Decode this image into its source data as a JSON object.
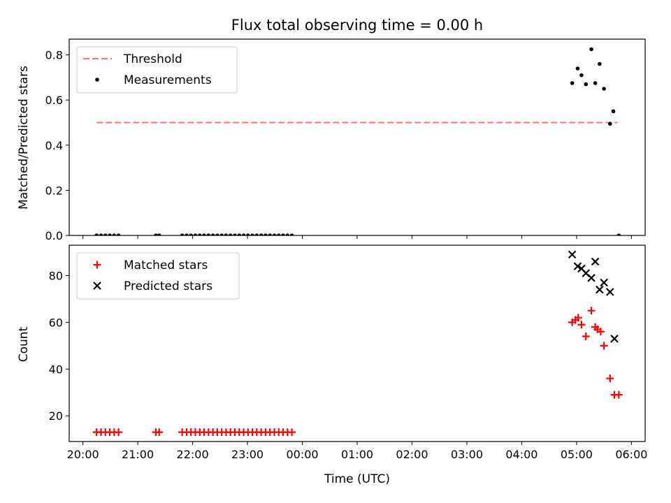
{
  "chart_data": [
    {
      "type": "scatter",
      "title": "Flux total observing time = 0.00 h",
      "xlabel": "",
      "ylabel": "Matched/Predicted stars",
      "xlim": [
        -0.25,
        10.25
      ],
      "ylim": [
        0,
        0.87
      ],
      "x_ticks": [
        0,
        1,
        2,
        3,
        4,
        5,
        6,
        7,
        8,
        9,
        10
      ],
      "yticks": [
        0.0,
        0.2,
        0.4,
        0.6,
        0.8
      ],
      "ytick_labels": [
        "0.0",
        "0.2",
        "0.4",
        "0.6",
        "0.8"
      ],
      "legend": {
        "placement": "top-left",
        "entries": [
          "Threshold",
          "Measurements"
        ]
      },
      "threshold": {
        "name": "Threshold",
        "y": 0.5,
        "x_range": [
          0.25,
          9.75
        ],
        "color": "#ff7070",
        "style": "dashed"
      },
      "series": [
        {
          "name": "Measurements",
          "color": "#000000",
          "marker": "dot",
          "x": [
            0.25,
            0.33,
            0.41,
            0.49,
            0.57,
            0.65,
            1.33,
            1.39,
            1.81,
            1.89,
            1.97,
            2.05,
            2.13,
            2.21,
            2.29,
            2.37,
            2.45,
            2.53,
            2.61,
            2.69,
            2.77,
            2.85,
            2.93,
            3.01,
            3.09,
            3.17,
            3.25,
            3.33,
            3.41,
            3.49,
            3.57,
            3.65,
            3.73,
            3.81,
            8.92,
            9.02,
            9.09,
            9.17,
            9.27,
            9.34,
            9.42,
            9.5,
            9.61,
            9.67,
            9.77
          ],
          "y": [
            0,
            0,
            0,
            0,
            0,
            0,
            0,
            0,
            0,
            0,
            0,
            0,
            0,
            0,
            0,
            0,
            0,
            0,
            0,
            0,
            0,
            0,
            0,
            0,
            0,
            0,
            0,
            0,
            0,
            0,
            0,
            0,
            0,
            0,
            0.675,
            0.74,
            0.71,
            0.67,
            0.825,
            0.675,
            0.76,
            0.65,
            0.495,
            0.55,
            0.0
          ]
        }
      ]
    },
    {
      "type": "scatter",
      "title": "",
      "xlabel": "Time (UTC)",
      "ylabel": "Count",
      "xlim": [
        -0.25,
        10.25
      ],
      "ylim": [
        9,
        93
      ],
      "x_ticks": [
        0,
        1,
        2,
        3,
        4,
        5,
        6,
        7,
        8,
        9,
        10
      ],
      "xtick_labels": [
        "20:00",
        "21:00",
        "22:00",
        "23:00",
        "00:00",
        "01:00",
        "02:00",
        "03:00",
        "04:00",
        "05:00",
        "06:00"
      ],
      "yticks": [
        20,
        40,
        60,
        80
      ],
      "ytick_labels": [
        "20",
        "40",
        "60",
        "80"
      ],
      "legend": {
        "placement": "top-left",
        "entries": [
          "Matched stars",
          "Predicted stars"
        ]
      },
      "series": [
        {
          "name": "Matched stars",
          "color": "#ff0000",
          "marker": "plus",
          "x": [
            0.25,
            0.33,
            0.41,
            0.49,
            0.57,
            0.65,
            1.33,
            1.39,
            1.81,
            1.89,
            1.97,
            2.05,
            2.13,
            2.21,
            2.29,
            2.37,
            2.45,
            2.53,
            2.61,
            2.69,
            2.77,
            2.85,
            2.93,
            3.01,
            3.09,
            3.17,
            3.25,
            3.33,
            3.41,
            3.49,
            3.57,
            3.65,
            3.73,
            3.81,
            8.92,
            8.98,
            9.03,
            9.09,
            9.17,
            9.27,
            9.34,
            9.38,
            9.44,
            9.5,
            9.61,
            9.69,
            9.77
          ],
          "y": [
            13,
            13,
            13,
            13,
            13,
            13,
            13,
            13,
            13,
            13,
            13,
            13,
            13,
            13,
            13,
            13,
            13,
            13,
            13,
            13,
            13,
            13,
            13,
            13,
            13,
            13,
            13,
            13,
            13,
            13,
            13,
            13,
            13,
            13,
            60,
            61,
            62,
            59,
            54,
            65,
            58,
            57,
            56,
            50,
            36,
            29,
            29
          ]
        },
        {
          "name": "Predicted stars",
          "color": "#000000",
          "marker": "x",
          "x": [
            8.92,
            9.02,
            9.09,
            9.17,
            9.27,
            9.34,
            9.42,
            9.5,
            9.61,
            9.69
          ],
          "y": [
            89,
            84,
            83,
            81,
            79,
            86,
            74,
            77,
            73,
            53
          ]
        }
      ]
    }
  ]
}
